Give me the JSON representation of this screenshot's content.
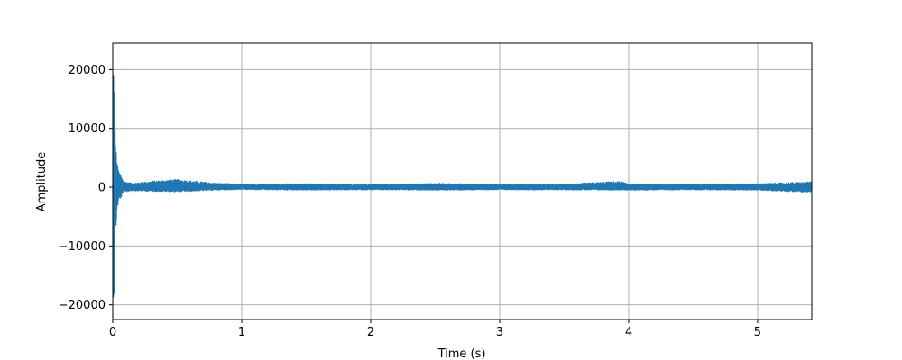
{
  "chart_data": {
    "type": "line",
    "title": "",
    "xlabel": "Time (s)",
    "ylabel": "Amplitude",
    "xlim": [
      0,
      5.42
    ],
    "ylim": [
      -22500,
      24500
    ],
    "x_ticks": [
      0,
      1,
      2,
      3,
      4,
      5
    ],
    "x_tick_labels": [
      "0",
      "1",
      "2",
      "3",
      "4",
      "5"
    ],
    "y_ticks": [
      -20000,
      -10000,
      0,
      10000,
      20000
    ],
    "y_tick_labels": [
      "−20000",
      "−10000",
      "0",
      "10000",
      "20000"
    ],
    "grid": true,
    "legend": "none",
    "series": [
      {
        "color": "#1f77b4",
        "envelope": {
          "x": [
            0.0,
            0.005,
            0.01,
            0.015,
            0.02,
            0.03,
            0.04,
            0.05,
            0.06,
            0.08,
            0.1,
            0.15,
            0.2,
            0.3,
            0.4,
            0.5,
            0.6,
            0.7,
            0.8,
            1.0,
            1.2,
            1.5,
            2.0,
            2.5,
            3.0,
            3.5,
            3.94,
            4.0,
            4.5,
            5.0,
            5.42
          ],
          "upper": [
            500,
            22500,
            21000,
            15000,
            9000,
            5000,
            3500,
            2500,
            2200,
            1200,
            900,
            700,
            800,
            1000,
            1200,
            1300,
            1100,
            900,
            700,
            500,
            550,
            600,
            450,
            650,
            500,
            500,
            1000,
            500,
            550,
            600,
            900
          ],
          "lower": [
            -500,
            -20700,
            -19500,
            -15500,
            -9500,
            -5200,
            -3200,
            -2300,
            -2000,
            -1100,
            -800,
            -600,
            -650,
            -700,
            -750,
            -800,
            -700,
            -600,
            -500,
            -400,
            -450,
            -500,
            -450,
            -500,
            -450,
            -450,
            -500,
            -500,
            -450,
            -500,
            -900
          ]
        }
      }
    ]
  }
}
